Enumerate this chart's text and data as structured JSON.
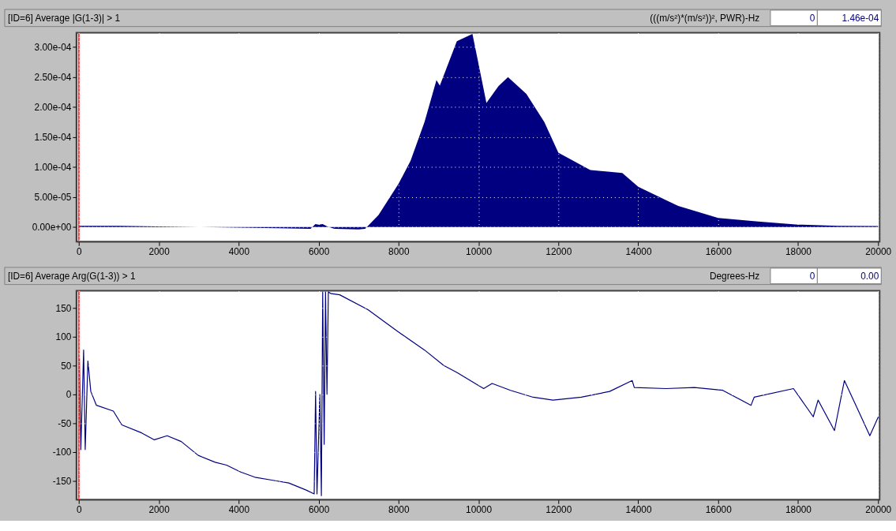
{
  "chart_data": [
    {
      "type": "area",
      "title": "[ID=6] Average |G(1-3)|  > 1",
      "ylabel": "(((m/s²)*(m/s²))², PWR)-Hz",
      "annotations": [
        "0",
        "1.46e-04"
      ],
      "xlim": [
        -60,
        20040
      ],
      "xticks": [
        0,
        2000,
        4000,
        6000,
        8000,
        10000,
        12000,
        14000,
        16000,
        18000,
        20000
      ],
      "ylim": [
        -2.45e-05,
        0.000324
      ],
      "yticks": [
        {
          "value": 0,
          "label": "0.00e+00"
        },
        {
          "value": 5e-05,
          "label": "5.00e-05"
        },
        {
          "value": 0.0001,
          "label": "1.00e-04"
        },
        {
          "value": 0.00015,
          "label": "1.50e-04"
        },
        {
          "value": 0.0002,
          "label": "2.00e-04"
        },
        {
          "value": 0.00025,
          "label": "2.50e-04"
        },
        {
          "value": 0.0003,
          "label": "3.00e-04"
        }
      ],
      "grid": true,
      "ref_lines": [
        {
          "axis": "x",
          "value": 0,
          "color": "#ff3030"
        }
      ],
      "series": [
        {
          "color": "#000080",
          "x": [
            0,
            1000,
            2000,
            3000,
            4000,
            5000,
            5800,
            5920,
            6000,
            6100,
            6250,
            6400,
            7000,
            7165,
            7500,
            8000,
            8300,
            8650,
            8950,
            9034,
            9460,
            9850,
            10000,
            10200,
            10500,
            10740,
            11200,
            11650,
            12000,
            12800,
            13600,
            14000,
            15000,
            16000,
            17000,
            18000,
            19000,
            20000
          ],
          "values": [
            2e-06,
            2e-06,
            1e-06,
            0,
            -1e-06,
            -2e-06,
            -3e-06,
            5e-06,
            4e-06,
            5e-06,
            0,
            -3e-06,
            -4e-06,
            -3e-06,
            2e-05,
            7.2e-05,
            0.00011,
            0.000175,
            0.000245,
            0.000236,
            0.00031,
            0.000322,
            0.000273,
            0.000207,
            0.000235,
            0.00025,
            0.000222,
            0.000175,
            0.000124,
            9.5e-05,
            9e-05,
            6.7e-05,
            3.5e-05,
            1.5e-05,
            9e-06,
            4e-06,
            2e-06,
            1.5e-06
          ]
        }
      ]
    },
    {
      "type": "line",
      "title": "[ID=6] Average Arg(G(1-3))  > 1",
      "ylabel": "Degrees-Hz",
      "annotations": [
        "0",
        "0.00"
      ],
      "xlim": [
        -60,
        20040
      ],
      "xticks": [
        0,
        2000,
        4000,
        6000,
        8000,
        10000,
        12000,
        14000,
        16000,
        18000,
        20000
      ],
      "ylim": [
        -183,
        180
      ],
      "yticks": [
        -150,
        -100,
        -50,
        0,
        50,
        100,
        150
      ],
      "grid": true,
      "ref_lines": [
        {
          "axis": "x",
          "value": 0,
          "color": "#ff3030"
        }
      ],
      "series": [
        {
          "color": "#000080",
          "x": [
            14,
            50,
            120,
            160,
            227,
            300,
            440,
            864,
            1076,
            1572,
            1890,
            2210,
            2563,
            2988,
            3412,
            3696,
            4050,
            4404,
            4830,
            5253,
            5678,
            5890,
            5925,
            5960,
            6032,
            6070,
            6103,
            6140,
            6174,
            6210,
            6245,
            6315,
            6528,
            7236,
            7944,
            8652,
            9133,
            9459,
            10131,
            10343,
            10803,
            11370,
            11866,
            12574,
            13282,
            13849,
            13900,
            14698,
            15406,
            16114,
            16822,
            16900,
            17884,
            18379,
            18500,
            18910,
            19158,
            19512,
            19795,
            20008
          ],
          "values": [
            62,
            -96,
            77,
            -96,
            58,
            5,
            -19,
            -29,
            -53,
            -67,
            -79,
            -72,
            -82,
            -106,
            -118,
            -123,
            -135,
            -144,
            -149,
            -154,
            -166,
            -173,
            5,
            -173,
            0,
            -176,
            178,
            -87,
            178,
            0,
            178,
            175,
            173,
            147,
            111,
            77,
            50,
            38,
            10,
            19,
            7,
            -5,
            -10,
            -5,
            5,
            24,
            12,
            10,
            12,
            7,
            -19,
            -5,
            10,
            -39,
            -10,
            -63,
            24,
            -29,
            -72,
            -39
          ]
        }
      ]
    }
  ]
}
